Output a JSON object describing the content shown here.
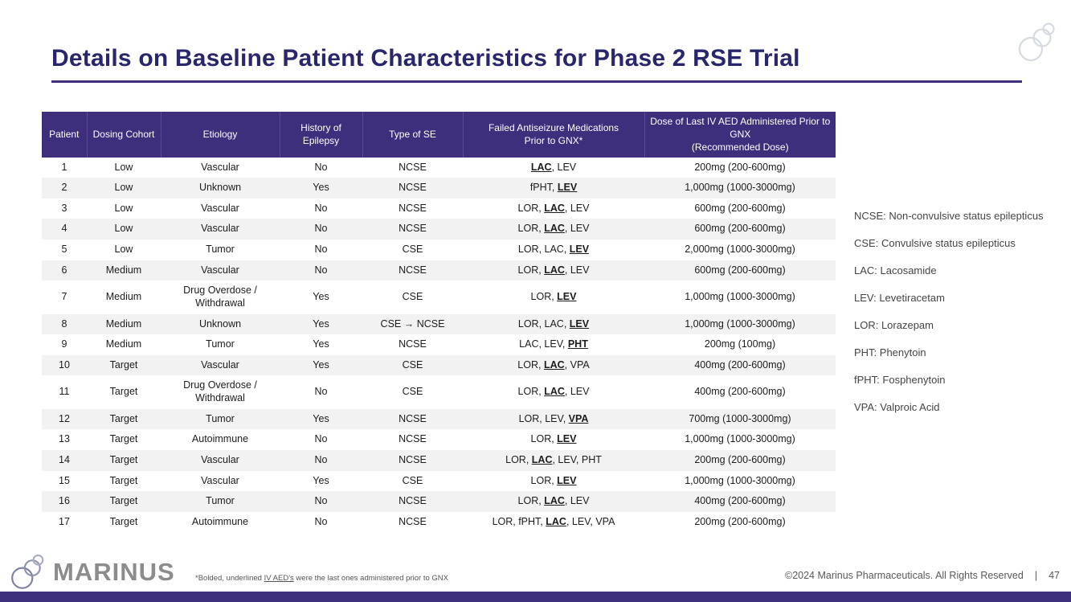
{
  "colors": {
    "header_bg": "#3E2E7B",
    "title_text": "#29276B",
    "row_alt_bg": "#F2F2F2",
    "bottom_bar": "#3E2E7B",
    "footer_text": "#595959",
    "legend_text": "#454545",
    "logo_gray": "#8C8C8C"
  },
  "slide": {
    "title": "Details on Baseline Patient Characteristics for Phase 2 RSE Trial",
    "logo_text": "MARINUS",
    "footnote": {
      "prefix": "*Bolded, underlined ",
      "underlined": "IV AED's",
      "suffix": " were the last ones administered prior to GNX"
    },
    "footer": {
      "copyright": "©2024 Marinus Pharmaceuticals. All Rights Reserved",
      "divider": "|",
      "page_number": "47"
    }
  },
  "table": {
    "headers": [
      "Patient",
      "Dosing Cohort",
      "Etiology",
      "History of\nEpilepsy",
      "Type of SE",
      "Failed Antiseizure Medications\nPrior to GNX*",
      "Dose of Last IV AED Administered Prior to\nGNX\n(Recommended Dose)"
    ],
    "rows": [
      {
        "patient": "1",
        "cohort": "Low",
        "etiology": "Vascular",
        "history": "No",
        "type": "NCSE",
        "meds": "LAC, LEV",
        "last_med": "LAC",
        "dose": "200mg (200-600mg)"
      },
      {
        "patient": "2",
        "cohort": "Low",
        "etiology": "Unknown",
        "history": "Yes",
        "type": "NCSE",
        "meds": "fPHT, LEV",
        "last_med": "LEV",
        "dose": "1,000mg (1000-3000mg)"
      },
      {
        "patient": "3",
        "cohort": "Low",
        "etiology": "Vascular",
        "history": "No",
        "type": "NCSE",
        "meds": "LOR, LAC, LEV",
        "last_med": "LAC",
        "dose": "600mg (200-600mg)"
      },
      {
        "patient": "4",
        "cohort": "Low",
        "etiology": "Vascular",
        "history": "No",
        "type": "NCSE",
        "meds": "LOR, LAC, LEV",
        "last_med": "LAC",
        "dose": "600mg (200-600mg)"
      },
      {
        "patient": "5",
        "cohort": "Low",
        "etiology": "Tumor",
        "history": "No",
        "type": "CSE",
        "meds": "LOR, LAC, LEV",
        "last_med": "LEV",
        "dose": "2,000mg (1000-3000mg)"
      },
      {
        "patient": "6",
        "cohort": "Medium",
        "etiology": "Vascular",
        "history": "No",
        "type": "NCSE",
        "meds": "LOR, LAC, LEV",
        "last_med": "LAC",
        "dose": "600mg (200-600mg)"
      },
      {
        "patient": "7",
        "cohort": "Medium",
        "etiology": "Drug Overdose /\nWithdrawal",
        "history": "Yes",
        "type": "CSE",
        "meds": "LOR, LEV",
        "last_med": "LEV",
        "dose": "1,000mg (1000-3000mg)"
      },
      {
        "patient": "8",
        "cohort": "Medium",
        "etiology": "Unknown",
        "history": "Yes",
        "type": "CSE → NCSE",
        "meds": "LOR, LAC, LEV",
        "last_med": "LEV",
        "dose": "1,000mg (1000-3000mg)"
      },
      {
        "patient": "9",
        "cohort": "Medium",
        "etiology": "Tumor",
        "history": "Yes",
        "type": "NCSE",
        "meds": "LAC, LEV, PHT",
        "last_med": "PHT",
        "dose": "200mg (100mg)"
      },
      {
        "patient": "10",
        "cohort": "Target",
        "etiology": "Vascular",
        "history": "Yes",
        "type": "CSE",
        "meds": "LOR, LAC, VPA",
        "last_med": "LAC",
        "dose": "400mg (200-600mg)"
      },
      {
        "patient": "11",
        "cohort": "Target",
        "etiology": "Drug Overdose /\nWithdrawal",
        "history": "No",
        "type": "CSE",
        "meds": "LOR, LAC, LEV",
        "last_med": "LAC",
        "dose": "400mg (200-600mg)"
      },
      {
        "patient": "12",
        "cohort": "Target",
        "etiology": "Tumor",
        "history": "Yes",
        "type": "NCSE",
        "meds": "LOR, LEV, VPA",
        "last_med": "VPA",
        "dose": "700mg (1000-3000mg)"
      },
      {
        "patient": "13",
        "cohort": "Target",
        "etiology": "Autoimmune",
        "history": "No",
        "type": "NCSE",
        "meds": "LOR, LEV",
        "last_med": "LEV",
        "dose": "1,000mg (1000-3000mg)"
      },
      {
        "patient": "14",
        "cohort": "Target",
        "etiology": "Vascular",
        "history": "No",
        "type": "NCSE",
        "meds": "LOR, LAC, LEV, PHT",
        "last_med": "LAC",
        "dose": "200mg (200-600mg)"
      },
      {
        "patient": "15",
        "cohort": "Target",
        "etiology": "Vascular",
        "history": "Yes",
        "type": "CSE",
        "meds": "LOR, LEV",
        "last_med": "LEV",
        "dose": "1,000mg (1000-3000mg)"
      },
      {
        "patient": "16",
        "cohort": "Target",
        "etiology": "Tumor",
        "history": "No",
        "type": "NCSE",
        "meds": "LOR, LAC, LEV",
        "last_med": "LAC",
        "dose": "400mg (200-600mg)"
      },
      {
        "patient": "17",
        "cohort": "Target",
        "etiology": "Autoimmune",
        "history": "No",
        "type": "NCSE",
        "meds": "LOR, fPHT, LAC, LEV, VPA",
        "last_med": "LAC",
        "dose": "200mg (200-600mg)"
      }
    ]
  },
  "legend": {
    "items": [
      "NCSE: Non-convulsive status epilepticus",
      "CSE: Convulsive status epilepticus",
      "LAC: Lacosamide",
      "LEV: Levetiracetam",
      "LOR: Lorazepam",
      "PHT: Phenytoin",
      "fPHT: Fosphenytoin",
      "VPA: Valproic Acid"
    ]
  }
}
